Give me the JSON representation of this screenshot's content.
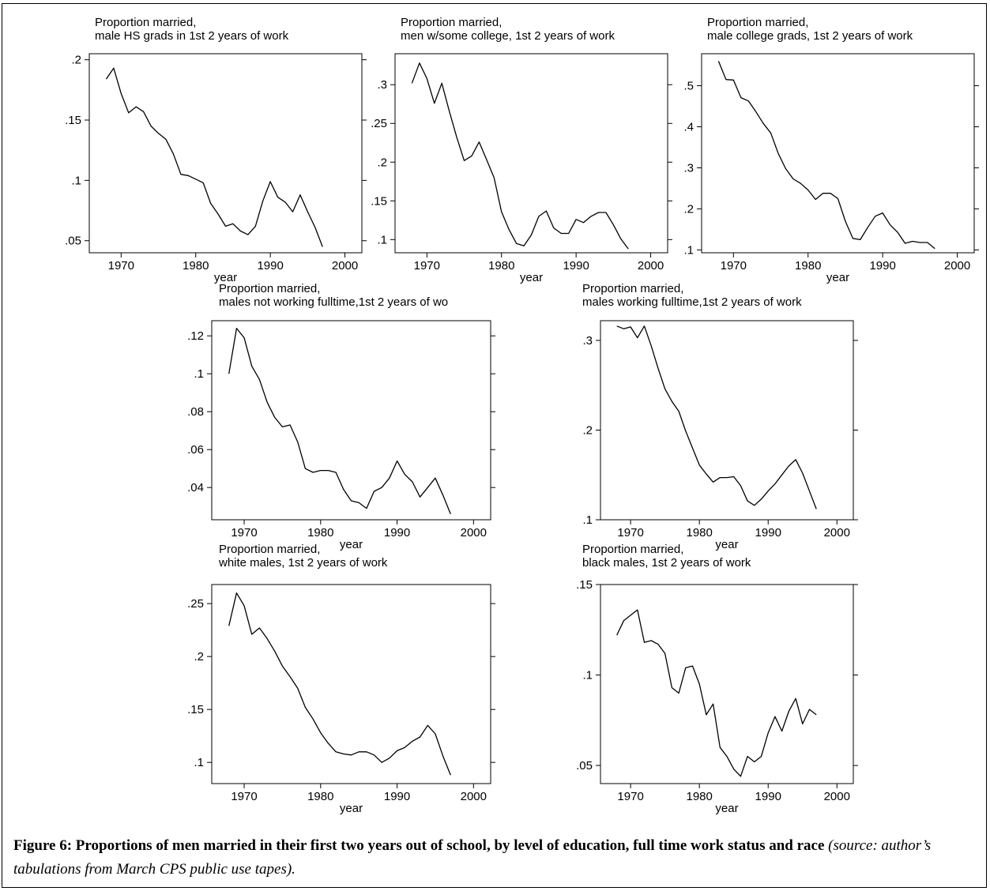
{
  "chart_data": [
    {
      "type": "line",
      "title": "Proportion married,",
      "subtitle": "male HS grads in 1st 2 years of work",
      "xlabel": "year",
      "ylabel": "",
      "xlim": [
        1967,
        2001
      ],
      "ylim": [
        0.04,
        0.205
      ],
      "xticks": [
        1970,
        1980,
        1990,
        2000
      ],
      "xtick_labels": [
        "1970",
        "1980",
        "1990",
        "2000"
      ],
      "yticks": [
        0.05,
        0.1,
        0.15,
        0.2
      ],
      "ytick_labels": [
        ".05",
        ".1",
        ".15",
        ".2"
      ],
      "x": [
        1968,
        1969,
        1970,
        1971,
        1972,
        1973,
        1974,
        1975,
        1976,
        1977,
        1978,
        1979,
        1980,
        1981,
        1982,
        1983,
        1984,
        1985,
        1986,
        1987,
        1988,
        1989,
        1990,
        1991,
        1992,
        1993,
        1994,
        1995,
        1996,
        1997
      ],
      "values": [
        0.184,
        0.193,
        0.172,
        0.156,
        0.161,
        0.157,
        0.145,
        0.139,
        0.134,
        0.122,
        0.105,
        0.104,
        0.101,
        0.098,
        0.081,
        0.072,
        0.062,
        0.064,
        0.058,
        0.055,
        0.062,
        0.083,
        0.099,
        0.086,
        0.082,
        0.074,
        0.088,
        0.074,
        0.061,
        0.045
      ]
    },
    {
      "type": "line",
      "title": "Proportion married,",
      "subtitle": "men w/some college, 1st 2 years of work",
      "xlabel": "year",
      "ylabel": "",
      "xlim": [
        1967,
        2001
      ],
      "ylim": [
        0.083,
        0.34
      ],
      "xticks": [
        1970,
        1980,
        1990,
        2000
      ],
      "xtick_labels": [
        "1970",
        "1980",
        "1990",
        "2000"
      ],
      "yticks": [
        0.1,
        0.15,
        0.2,
        0.25,
        0.3
      ],
      "ytick_labels": [
        ".1",
        ".15",
        ".2",
        ".25",
        ".3"
      ],
      "x": [
        1968,
        1969,
        1970,
        1971,
        1972,
        1973,
        1974,
        1975,
        1976,
        1977,
        1978,
        1979,
        1980,
        1981,
        1982,
        1983,
        1984,
        1985,
        1986,
        1987,
        1988,
        1989,
        1990,
        1991,
        1992,
        1993,
        1994,
        1995,
        1996,
        1997
      ],
      "values": [
        0.302,
        0.328,
        0.308,
        0.276,
        0.302,
        0.266,
        0.232,
        0.202,
        0.208,
        0.226,
        0.203,
        0.18,
        0.136,
        0.113,
        0.095,
        0.092,
        0.106,
        0.13,
        0.137,
        0.115,
        0.108,
        0.108,
        0.126,
        0.122,
        0.13,
        0.135,
        0.135,
        0.119,
        0.101,
        0.088
      ]
    },
    {
      "type": "line",
      "title": "Proportion married,",
      "subtitle": "male college grads, 1st 2 years of work",
      "xlabel": "year",
      "ylabel": "",
      "xlim": [
        1967,
        2001
      ],
      "ylim": [
        0.093,
        0.578
      ],
      "xticks": [
        1970,
        1980,
        1990,
        2000
      ],
      "xtick_labels": [
        "1970",
        "1980",
        "1990",
        "2000"
      ],
      "yticks": [
        0.1,
        0.2,
        0.3,
        0.4,
        0.5
      ],
      "ytick_labels": [
        ".1",
        ".2",
        ".3",
        ".4",
        ".5"
      ],
      "x": [
        1968,
        1969,
        1970,
        1971,
        1972,
        1973,
        1974,
        1975,
        1976,
        1977,
        1978,
        1979,
        1980,
        1981,
        1982,
        1983,
        1984,
        1985,
        1986,
        1987,
        1988,
        1989,
        1990,
        1991,
        1992,
        1993,
        1994,
        1995,
        1996,
        1997
      ],
      "values": [
        0.56,
        0.515,
        0.514,
        0.471,
        0.463,
        0.437,
        0.408,
        0.385,
        0.335,
        0.298,
        0.273,
        0.262,
        0.246,
        0.223,
        0.238,
        0.238,
        0.225,
        0.17,
        0.128,
        0.125,
        0.155,
        0.182,
        0.19,
        0.161,
        0.143,
        0.116,
        0.121,
        0.118,
        0.118,
        0.103
      ]
    },
    {
      "type": "line",
      "title": "Proportion married,",
      "subtitle": "males not working fulltime,1st 2 years of wo",
      "xlabel": "year",
      "ylabel": "",
      "xlim": [
        1967,
        2001
      ],
      "ylim": [
        0.023,
        0.128
      ],
      "xticks": [
        1970,
        1980,
        1990,
        2000
      ],
      "xtick_labels": [
        "1970",
        "1980",
        "1990",
        "2000"
      ],
      "yticks": [
        0.04,
        0.06,
        0.08,
        0.1,
        0.12
      ],
      "ytick_labels": [
        ".04",
        ".06",
        ".08",
        ".1",
        ".12"
      ],
      "x": [
        1968,
        1969,
        1970,
        1971,
        1972,
        1973,
        1974,
        1975,
        1976,
        1977,
        1978,
        1979,
        1980,
        1981,
        1982,
        1983,
        1984,
        1985,
        1986,
        1987,
        1988,
        1989,
        1990,
        1991,
        1992,
        1993,
        1994,
        1995,
        1996,
        1997
      ],
      "values": [
        0.1,
        0.124,
        0.119,
        0.104,
        0.097,
        0.085,
        0.077,
        0.072,
        0.073,
        0.064,
        0.05,
        0.048,
        0.049,
        0.049,
        0.048,
        0.039,
        0.033,
        0.032,
        0.029,
        0.038,
        0.04,
        0.045,
        0.054,
        0.047,
        0.043,
        0.035,
        0.04,
        0.045,
        0.036,
        0.026
      ]
    },
    {
      "type": "line",
      "title": "Proportion married,",
      "subtitle": "males working fulltime,1st 2 years of work",
      "xlabel": "year",
      "ylabel": "",
      "xlim": [
        1967,
        2001
      ],
      "ylim": [
        0.1,
        0.322
      ],
      "xticks": [
        1970,
        1980,
        1990,
        2000
      ],
      "xtick_labels": [
        "1970",
        "1980",
        "1990",
        "2000"
      ],
      "yticks": [
        0.1,
        0.2,
        0.3
      ],
      "ytick_labels": [
        ".1",
        ".2",
        ".3"
      ],
      "x": [
        1968,
        1969,
        1970,
        1971,
        1972,
        1973,
        1974,
        1975,
        1976,
        1977,
        1978,
        1979,
        1980,
        1981,
        1982,
        1983,
        1984,
        1985,
        1986,
        1987,
        1988,
        1989,
        1990,
        1991,
        1992,
        1993,
        1994,
        1995,
        1996,
        1997
      ],
      "values": [
        0.316,
        0.313,
        0.315,
        0.303,
        0.316,
        0.294,
        0.269,
        0.246,
        0.232,
        0.221,
        0.199,
        0.18,
        0.161,
        0.151,
        0.142,
        0.147,
        0.147,
        0.148,
        0.138,
        0.121,
        0.116,
        0.123,
        0.132,
        0.14,
        0.15,
        0.16,
        0.167,
        0.152,
        0.132,
        0.112
      ]
    },
    {
      "type": "line",
      "title": "Proportion married,",
      "subtitle": "white males, 1st 2 years of work",
      "xlabel": "year",
      "ylabel": "",
      "xlim": [
        1967,
        2001
      ],
      "ylim": [
        0.08,
        0.268
      ],
      "xticks": [
        1970,
        1980,
        1990,
        2000
      ],
      "xtick_labels": [
        "1970",
        "1980",
        "1990",
        "2000"
      ],
      "yticks": [
        0.1,
        0.15,
        0.2,
        0.25
      ],
      "ytick_labels": [
        ".1",
        ".15",
        ".2",
        ".25"
      ],
      "x": [
        1968,
        1969,
        1970,
        1971,
        1972,
        1973,
        1974,
        1975,
        1976,
        1977,
        1978,
        1979,
        1980,
        1981,
        1982,
        1983,
        1984,
        1985,
        1986,
        1987,
        1988,
        1989,
        1990,
        1991,
        1992,
        1993,
        1994,
        1995,
        1996,
        1997
      ],
      "values": [
        0.229,
        0.26,
        0.248,
        0.221,
        0.227,
        0.217,
        0.205,
        0.191,
        0.181,
        0.17,
        0.152,
        0.141,
        0.128,
        0.118,
        0.11,
        0.108,
        0.107,
        0.11,
        0.11,
        0.107,
        0.1,
        0.104,
        0.111,
        0.114,
        0.12,
        0.124,
        0.135,
        0.127,
        0.106,
        0.088
      ]
    },
    {
      "type": "line",
      "title": "Proportion married,",
      "subtitle": "black males, 1st 2 years of work",
      "xlabel": "year",
      "ylabel": "",
      "xlim": [
        1967,
        2001
      ],
      "ylim": [
        0.04,
        0.15
      ],
      "xticks": [
        1970,
        1980,
        1990,
        2000
      ],
      "xtick_labels": [
        "1970",
        "1980",
        "1990",
        "2000"
      ],
      "yticks": [
        0.05,
        0.1,
        0.15
      ],
      "ytick_labels": [
        ".05",
        ".1",
        ".15"
      ],
      "x": [
        1968,
        1969,
        1970,
        1971,
        1972,
        1973,
        1974,
        1975,
        1976,
        1977,
        1978,
        1979,
        1980,
        1981,
        1982,
        1983,
        1984,
        1985,
        1986,
        1987,
        1988,
        1989,
        1990,
        1991,
        1992,
        1993,
        1994,
        1995,
        1996,
        1997
      ],
      "values": [
        0.122,
        0.13,
        0.133,
        0.136,
        0.118,
        0.119,
        0.117,
        0.112,
        0.093,
        0.09,
        0.104,
        0.105,
        0.095,
        0.078,
        0.084,
        0.06,
        0.055,
        0.048,
        0.044,
        0.055,
        0.052,
        0.055,
        0.068,
        0.077,
        0.069,
        0.08,
        0.087,
        0.073,
        0.081,
        0.078
      ]
    }
  ],
  "caption": {
    "bold": "Figure 6: Proportions of men married in their first two years out of school, by level of education, full time work status and race",
    "italic": "(source: author’s tabulations from March CPS public use tapes)."
  }
}
